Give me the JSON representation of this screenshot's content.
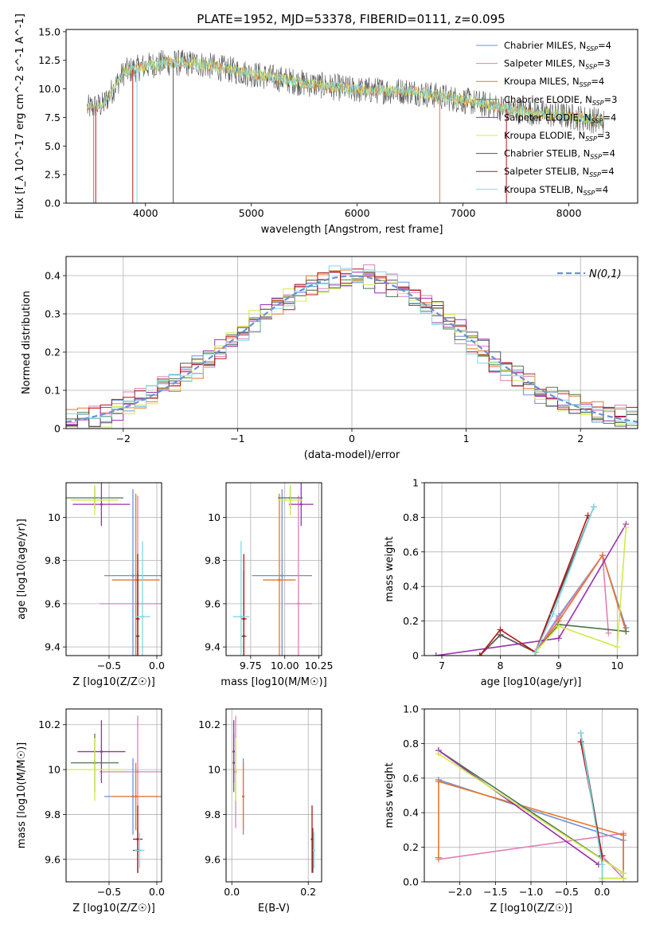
{
  "figure_title": "PLATE=1952, MJD=53378, FIBERID=0111, z=0.095",
  "models": [
    {
      "name": "Chabrier MILES",
      "nssp": "4",
      "color": "#6f8fd8"
    },
    {
      "name": "Salpeter MILES",
      "nssp": "3",
      "color": "#e07fb8"
    },
    {
      "name": "Kroupa MILES",
      "nssp": "4",
      "color": "#e8762c"
    },
    {
      "name": "Chabrier ELODIE",
      "nssp": "3",
      "color": "#4a7a4a"
    },
    {
      "name": "Salpeter ELODIE",
      "nssp": "4",
      "color": "#9b2fae"
    },
    {
      "name": "Kroupa ELODIE",
      "nssp": "3",
      "color": "#d4e850"
    },
    {
      "name": "Chabrier STELIB",
      "nssp": "4",
      "color": "#555555"
    },
    {
      "name": "Salpeter STELIB",
      "nssp": "4",
      "color": "#b01818"
    },
    {
      "name": "Kroupa STELIB",
      "nssp": "4",
      "color": "#80d8e0"
    }
  ],
  "chart_data": [
    {
      "type": "line",
      "id": "spectrum",
      "title": "PLATE=1952, MJD=53378, FIBERID=0111, z=0.095",
      "xlabel": "wavelength [Angstrom, rest frame]",
      "ylabel": "Flux [f_λ 10^-17 erg cm^-2 s^-1 A^-1]",
      "xlim": [
        3250,
        8650
      ],
      "ylim": [
        0,
        15.2
      ],
      "xticks": [
        4000,
        5000,
        6000,
        7000,
        8000
      ],
      "yticks": [
        0.0,
        2.5,
        5.0,
        7.5,
        10.0,
        12.5,
        15.0
      ],
      "continuum": [
        [
          3450,
          8.3
        ],
        [
          3600,
          8.6
        ],
        [
          3800,
          11.5
        ],
        [
          4000,
          12.0
        ],
        [
          4200,
          12.3
        ],
        [
          4500,
          12.2
        ],
        [
          5000,
          11.3
        ],
        [
          5500,
          10.5
        ],
        [
          6000,
          9.9
        ],
        [
          6500,
          9.8
        ],
        [
          7000,
          9.0
        ],
        [
          7500,
          8.1
        ],
        [
          8000,
          7.6
        ],
        [
          8300,
          7.2
        ]
      ],
      "legend_position": "upper right",
      "grid": false
    },
    {
      "type": "line",
      "id": "residual-histograms",
      "xlabel": "(data-model)/error",
      "ylabel": "Normed distribution",
      "xlim": [
        -2.5,
        2.5
      ],
      "ylim": [
        0,
        0.45
      ],
      "xticks": [
        -2,
        -1,
        0,
        1,
        2
      ],
      "yticks": [
        0.0,
        0.1,
        0.2,
        0.3,
        0.4
      ],
      "reference": {
        "label": "N(0,1)",
        "mean": 0,
        "sigma": 1
      },
      "bin_width": 0.1,
      "grid": true,
      "legend_position": "upper right"
    },
    {
      "type": "scatter",
      "id": "age-vs-metallicity",
      "xlabel": "Z [log10(Z/Z☉)]",
      "ylabel": "age  [log10(age/yr)]",
      "xlim": [
        -0.95,
        0.05
      ],
      "ylim": [
        9.36,
        10.16
      ],
      "xticks": [
        -0.5,
        0.0
      ],
      "yticks": [
        9.4,
        9.6,
        9.8,
        10.0
      ],
      "grid": true,
      "points": [
        {
          "model": 0,
          "x": -0.25,
          "y": 9.73,
          "xerr": 0.3,
          "yerr": 0.4
        },
        {
          "model": 1,
          "x": -0.2,
          "y": 9.6,
          "xerr": 0.4,
          "yerr": 0.5
        },
        {
          "model": 2,
          "x": -0.22,
          "y": 9.71,
          "xerr": 0.25,
          "yerr": 0.4
        },
        {
          "model": 3,
          "x": -0.65,
          "y": 10.09,
          "xerr": 0.3,
          "yerr": 0.05
        },
        {
          "model": 4,
          "x": -0.58,
          "y": 10.06,
          "xerr": 0.3,
          "yerr": 0.1
        },
        {
          "model": 5,
          "x": -0.65,
          "y": 10.08,
          "xerr": 0.25,
          "yerr": 0.07
        },
        {
          "model": 6,
          "x": -0.2,
          "y": 9.45,
          "xerr": 0.02,
          "yerr": 0.3
        },
        {
          "model": 7,
          "x": -0.2,
          "y": 9.53,
          "xerr": 0.02,
          "yerr": 0.3
        },
        {
          "model": 8,
          "x": -0.15,
          "y": 9.54,
          "xerr": 0.08,
          "yerr": 0.35
        }
      ]
    },
    {
      "type": "scatter",
      "id": "age-vs-mass",
      "xlabel": "mass [log10(M/M☉)]",
      "ylabel": "",
      "xlim": [
        9.57,
        10.27
      ],
      "ylim": [
        9.36,
        10.16
      ],
      "xticks": [
        9.75,
        10.0,
        10.25
      ],
      "xticklabels": [
        "9.75",
        "10.00",
        "10.25"
      ],
      "yticks": [
        9.4,
        9.6,
        9.8,
        10.0
      ],
      "grid": true,
      "points": [
        {
          "model": 0,
          "x": 9.98,
          "y": 9.73,
          "xerr": 0.22,
          "yerr": 0.4
        },
        {
          "model": 1,
          "x": 10.1,
          "y": 9.6,
          "xerr": 0.1,
          "yerr": 0.5
        },
        {
          "model": 2,
          "x": 9.96,
          "y": 9.71,
          "xerr": 0.12,
          "yerr": 0.4
        },
        {
          "model": 3,
          "x": 10.04,
          "y": 10.09,
          "xerr": 0.09,
          "yerr": 0.05
        },
        {
          "model": 4,
          "x": 10.12,
          "y": 10.06,
          "xerr": 0.09,
          "yerr": 0.1
        },
        {
          "model": 5,
          "x": 10.04,
          "y": 10.08,
          "xerr": 0.09,
          "yerr": 0.07
        },
        {
          "model": 6,
          "x": 9.7,
          "y": 9.45,
          "xerr": 0.02,
          "yerr": 0.3
        },
        {
          "model": 7,
          "x": 9.7,
          "y": 9.53,
          "xerr": 0.02,
          "yerr": 0.3
        },
        {
          "model": 8,
          "x": 9.68,
          "y": 9.54,
          "xerr": 0.06,
          "yerr": 0.35
        }
      ]
    },
    {
      "type": "line",
      "id": "mass-weight-vs-age",
      "xlabel": "age  [log10(age/yr)]",
      "ylabel": "mass weight",
      "xlim": [
        6.7,
        10.35
      ],
      "ylim": [
        0,
        1.0
      ],
      "xticks": [
        7,
        8,
        9,
        10
      ],
      "yticks": [
        0.0,
        0.2,
        0.4,
        0.6,
        0.8,
        1.0
      ],
      "grid": true,
      "series": [
        {
          "model": 0,
          "points": [
            [
              8.6,
              0.02
            ],
            [
              9.0,
              0.23
            ],
            [
              9.75,
              0.58
            ],
            [
              10.15,
              0.16
            ]
          ]
        },
        {
          "model": 1,
          "points": [
            [
              8.6,
              0.02
            ],
            [
              9.0,
              0.22
            ],
            [
              9.75,
              0.58
            ],
            [
              9.85,
              0.13
            ]
          ]
        },
        {
          "model": 2,
          "points": [
            [
              8.6,
              0.02
            ],
            [
              9.0,
              0.2
            ],
            [
              9.75,
              0.58
            ],
            [
              10.15,
              0.14
            ]
          ]
        },
        {
          "model": 3,
          "points": [
            [
              7.65,
              0.0
            ],
            [
              8.0,
              0.12
            ],
            [
              8.6,
              0.02
            ],
            [
              9.0,
              0.18
            ],
            [
              10.15,
              0.14
            ]
          ]
        },
        {
          "model": 4,
          "points": [
            [
              6.9,
              0.0
            ],
            [
              9.0,
              0.1
            ],
            [
              10.15,
              0.76
            ]
          ]
        },
        {
          "model": 5,
          "points": [
            [
              8.6,
              0.02
            ],
            [
              9.0,
              0.17
            ],
            [
              10.0,
              0.05
            ],
            [
              10.15,
              0.74
            ]
          ]
        },
        {
          "model": 6,
          "points": [
            [
              7.65,
              0.0
            ],
            [
              8.0,
              0.12
            ],
            [
              8.6,
              0.02
            ],
            [
              9.6,
              0.86
            ]
          ]
        },
        {
          "model": 7,
          "points": [
            [
              7.65,
              0.0
            ],
            [
              8.0,
              0.15
            ],
            [
              8.6,
              0.02
            ],
            [
              9.5,
              0.81
            ]
          ]
        },
        {
          "model": 8,
          "points": [
            [
              8.6,
              0.02
            ],
            [
              8.9,
              0.24
            ],
            [
              9.6,
              0.86
            ]
          ]
        }
      ]
    },
    {
      "type": "scatter",
      "id": "mass-vs-metallicity",
      "xlabel": "Z [log10(Z/Z☉)]",
      "ylabel": "mass [log10(M/M☉)]",
      "xlim": [
        -0.95,
        0.05
      ],
      "ylim": [
        9.5,
        10.27
      ],
      "xticks": [
        -0.5,
        0.0
      ],
      "yticks": [
        9.6,
        9.8,
        10.0,
        10.2
      ],
      "grid": true,
      "points": [
        {
          "model": 0,
          "x": -0.25,
          "y": 9.88,
          "xerr": 0.3,
          "yerr": 0.17
        },
        {
          "model": 1,
          "x": -0.2,
          "y": 9.99,
          "xerr": 0.4,
          "yerr": 0.25
        },
        {
          "model": 2,
          "x": -0.22,
          "y": 9.88,
          "xerr": 0.25,
          "yerr": 0.15
        },
        {
          "model": 3,
          "x": -0.65,
          "y": 10.03,
          "xerr": 0.25,
          "yerr": 0.13
        },
        {
          "model": 4,
          "x": -0.58,
          "y": 10.08,
          "xerr": 0.25,
          "yerr": 0.14
        },
        {
          "model": 5,
          "x": -0.65,
          "y": 10.0,
          "xerr": 0.3,
          "yerr": 0.14
        },
        {
          "model": 6,
          "x": -0.2,
          "y": 9.64,
          "xerr": 0.05,
          "yerr": 0.1
        },
        {
          "model": 7,
          "x": -0.2,
          "y": 9.69,
          "xerr": 0.05,
          "yerr": 0.15
        },
        {
          "model": 8,
          "x": -0.18,
          "y": 9.64,
          "xerr": 0.05,
          "yerr": 0.08
        }
      ]
    },
    {
      "type": "scatter",
      "id": "mass-vs-ebv",
      "xlabel": "E(B-V)",
      "ylabel": "",
      "xlim": [
        -0.015,
        0.235
      ],
      "ylim": [
        9.5,
        10.27
      ],
      "xticks": [
        0.0,
        0.2
      ],
      "yticks": [
        9.6,
        9.8,
        10.0,
        10.2
      ],
      "grid": true,
      "points": [
        {
          "model": 0,
          "x": 0.03,
          "y": 9.88,
          "xerr": 0,
          "yerr": 0.17
        },
        {
          "model": 1,
          "x": 0.01,
          "y": 9.99,
          "xerr": 0,
          "yerr": 0.25
        },
        {
          "model": 2,
          "x": 0.03,
          "y": 9.88,
          "xerr": 0,
          "yerr": 0.15
        },
        {
          "model": 3,
          "x": 0.005,
          "y": 10.03,
          "xerr": 0,
          "yerr": 0.13
        },
        {
          "model": 4,
          "x": 0.005,
          "y": 10.08,
          "xerr": 0,
          "yerr": 0.14
        },
        {
          "model": 5,
          "x": 0.01,
          "y": 10.0,
          "xerr": 0,
          "yerr": 0.14
        },
        {
          "model": 6,
          "x": 0.212,
          "y": 9.64,
          "xerr": 0,
          "yerr": 0.1
        },
        {
          "model": 7,
          "x": 0.21,
          "y": 9.69,
          "xerr": 0,
          "yerr": 0.15
        },
        {
          "model": 8,
          "x": 0.215,
          "y": 9.64,
          "xerr": 0,
          "yerr": 0.08
        }
      ]
    },
    {
      "type": "line",
      "id": "mass-weight-vs-metallicity",
      "xlabel": "Z [log10(Z/Z☉)]",
      "ylabel": "mass weight",
      "xlim": [
        -2.5,
        0.5
      ],
      "ylim": [
        0,
        1.0
      ],
      "xticks": [
        -2.0,
        -1.5,
        -1.0,
        -0.5,
        0.0
      ],
      "yticks": [
        0.0,
        0.2,
        0.4,
        0.6,
        0.8,
        1.0
      ],
      "grid": true,
      "series": [
        {
          "model": 0,
          "points": [
            [
              -2.3,
              0.59
            ],
            [
              0.3,
              0.24
            ],
            [
              0.3,
              0.02
            ],
            [
              0.0,
              0.15
            ]
          ]
        },
        {
          "model": 1,
          "points": [
            [
              -2.3,
              0.13
            ],
            [
              0.3,
              0.28
            ],
            [
              0.3,
              0.02
            ],
            [
              0.0,
              0.15
            ]
          ]
        },
        {
          "model": 2,
          "points": [
            [
              -2.3,
              0.14
            ],
            [
              -2.3,
              0.58
            ],
            [
              0.3,
              0.27
            ],
            [
              0.3,
              0.02
            ]
          ]
        },
        {
          "model": 3,
          "points": [
            [
              -2.3,
              0.76
            ],
            [
              0.3,
              0.05
            ],
            [
              0.3,
              0.02
            ],
            [
              0.0,
              0.02
            ]
          ]
        },
        {
          "model": 4,
          "points": [
            [
              -2.3,
              0.76
            ],
            [
              -0.05,
              0.1
            ]
          ]
        },
        {
          "model": 5,
          "points": [
            [
              -2.3,
              0.74
            ],
            [
              0.3,
              0.05
            ],
            [
              0.3,
              0.02
            ],
            [
              0.0,
              0.02
            ]
          ]
        },
        {
          "model": 6,
          "points": [
            [
              -0.3,
              0.86
            ],
            [
              0.0,
              0.15
            ],
            [
              0.0,
              0.0
            ]
          ]
        },
        {
          "model": 7,
          "points": [
            [
              -0.3,
              0.81
            ],
            [
              0.0,
              0.15
            ],
            [
              0.0,
              0.0
            ]
          ]
        },
        {
          "model": 8,
          "points": [
            [
              -0.3,
              0.86
            ],
            [
              0.0,
              0.1
            ],
            [
              0.0,
              0.0
            ]
          ]
        }
      ]
    }
  ]
}
